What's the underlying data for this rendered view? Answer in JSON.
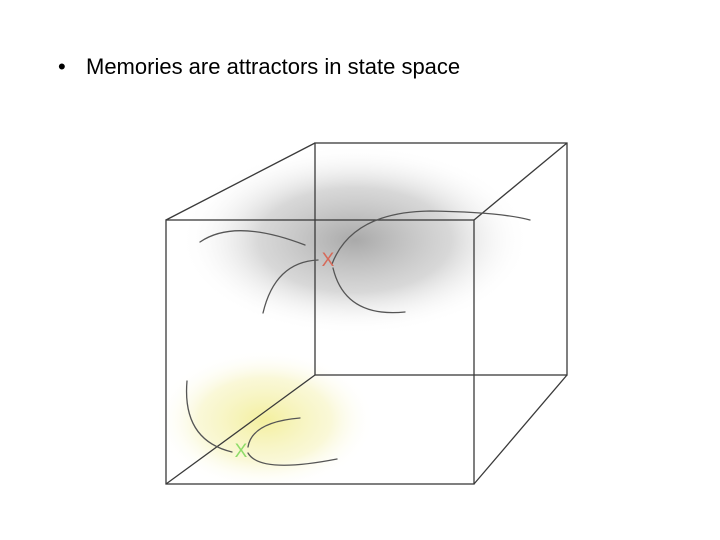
{
  "slide": {
    "bullet_symbol": "•",
    "bullet_text": "Memories are attractors in state space"
  },
  "diagram": {
    "attractor_upper": {
      "marker": "X",
      "color": "#d66a5a",
      "basin_color": "#9a9a9a"
    },
    "attractor_lower": {
      "marker": "X",
      "color": "#8fdc6a",
      "basin_color": "#f3ef9a"
    },
    "cube_edge_color": "#3a3a3a",
    "trajectory_color": "#555555"
  }
}
